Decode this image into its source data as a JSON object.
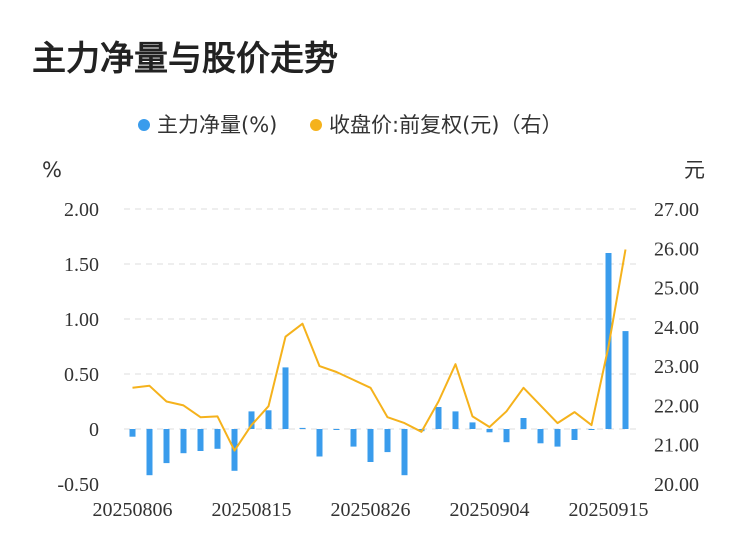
{
  "title": "主力净量与股价走势",
  "chart_data": {
    "type": "bar",
    "title": "主力净量与股价走势",
    "legend": [
      "主力净量(%)",
      "收盘价:前复权(元)（右）"
    ],
    "legend_position": "top",
    "left_axis_unit": "%",
    "right_axis_unit": "元",
    "left_ylim": [
      -0.5,
      2.0
    ],
    "right_ylim": [
      20.0,
      27.0
    ],
    "left_ticks": [
      "2.00",
      "1.50",
      "1.00",
      "0.50",
      "0",
      "-0.50"
    ],
    "right_ticks": [
      "27.00",
      "26.00",
      "25.00",
      "24.00",
      "23.00",
      "22.00",
      "21.00",
      "20.00"
    ],
    "x_tick_labels": [
      "20250806",
      "20250815",
      "20250826",
      "20250904",
      "20250915"
    ],
    "grid": true,
    "colors": {
      "bar": "#3a9cec",
      "line": "#f5b21c",
      "grid": "#dddddd"
    },
    "series": [
      {
        "name": "主力净量(%)",
        "type": "bar",
        "axis": "left",
        "values": [
          -0.07,
          -0.42,
          -0.31,
          -0.22,
          -0.2,
          -0.18,
          -0.38,
          0.16,
          0.17,
          0.56,
          0.01,
          -0.25,
          0.0,
          -0.16,
          -0.3,
          -0.21,
          -0.42,
          -0.02,
          0.2,
          0.16,
          0.06,
          -0.03,
          -0.12,
          0.1,
          -0.13,
          -0.16,
          -0.1,
          0.0,
          1.6,
          0.89
        ]
      },
      {
        "name": "收盘价:前复权(元)（右）",
        "type": "line",
        "axis": "right",
        "values": [
          22.45,
          22.5,
          22.1,
          22.0,
          21.7,
          21.72,
          20.85,
          21.5,
          21.98,
          23.75,
          24.08,
          23.0,
          22.85,
          22.65,
          22.45,
          21.7,
          21.55,
          21.33,
          22.1,
          23.05,
          21.72,
          21.45,
          21.85,
          22.45,
          22.0,
          21.55,
          21.83,
          21.5,
          23.5,
          25.97
        ]
      }
    ]
  }
}
